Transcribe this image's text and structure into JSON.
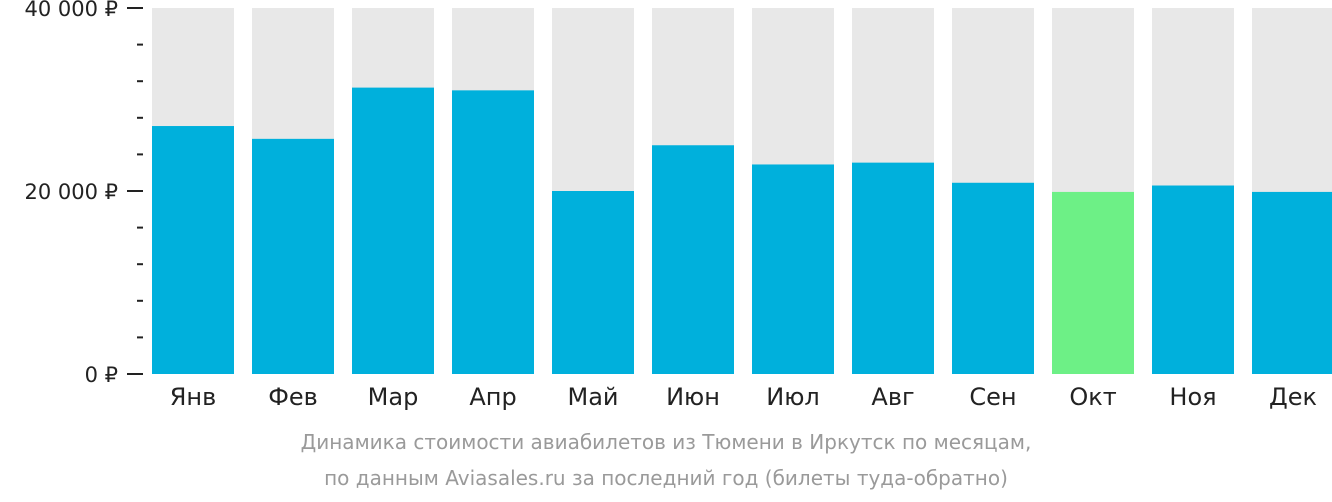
{
  "chart_data": {
    "type": "bar",
    "categories": [
      "Янв",
      "Фев",
      "Мар",
      "Апр",
      "Май",
      "Июн",
      "Июл",
      "Авг",
      "Сен",
      "Окт",
      "Ноя",
      "Дек"
    ],
    "values": [
      27100,
      25700,
      31300,
      31000,
      20000,
      25000,
      22900,
      23100,
      20900,
      19900,
      20600,
      19900
    ],
    "highlight_index": 9,
    "ylim": [
      0,
      40000
    ],
    "yticks": [
      {
        "value": 0,
        "label": "0 ₽"
      },
      {
        "value": 20000,
        "label": "20 000 ₽"
      },
      {
        "value": 40000,
        "label": "40 000 ₽"
      }
    ],
    "minor_tick_step": 4000,
    "title": "",
    "xlabel": "",
    "ylabel": "",
    "grid": false,
    "colors": {
      "bar": "#00b0dc",
      "highlight": "#6df086",
      "background_bar": "#e8e8e8",
      "axis": "#222222"
    }
  },
  "caption": {
    "line1": "Динамика стоимости авиабилетов из Тюмени в Иркутск по месяцам,",
    "line2": "по данным Aviasales.ru за последний год (билеты туда-обратно)"
  }
}
